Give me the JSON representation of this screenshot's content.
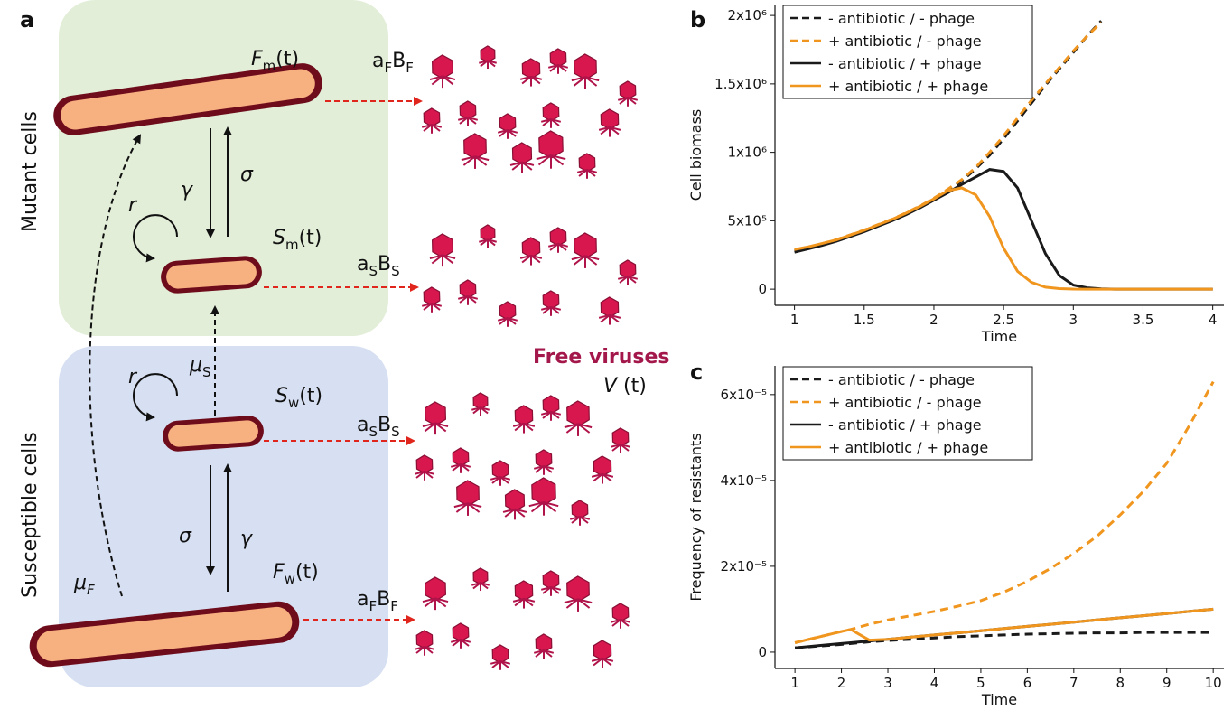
{
  "panel_labels": [
    "a",
    "b",
    "c"
  ],
  "diagram": {
    "compartments": [
      "Mutant cells",
      "Susceptible cells"
    ],
    "labels": [
      [
        {
          "text": "F",
          "italic": true
        },
        {
          "text": "m",
          "sub": true
        },
        {
          "text": "(t)"
        }
      ],
      [
        {
          "text": "a"
        },
        {
          "text": "F",
          "sub": true
        },
        {
          "text": "B"
        },
        {
          "text": "F",
          "sub": true
        }
      ],
      [
        {
          "text": "γ",
          "italic": true
        }
      ],
      [
        {
          "text": "σ",
          "italic": true
        }
      ],
      [
        {
          "text": "r",
          "italic": true
        }
      ],
      [
        {
          "text": "S",
          "italic": true
        },
        {
          "text": "m",
          "sub": true
        },
        {
          "text": "(t)"
        }
      ],
      [
        {
          "text": "a"
        },
        {
          "text": "S",
          "sub": true
        },
        {
          "text": "B"
        },
        {
          "text": "S",
          "sub": true
        }
      ],
      [
        {
          "text": "μ",
          "italic": true
        },
        {
          "text": "S",
          "sub": true
        }
      ],
      [
        {
          "text": "S",
          "italic": true
        },
        {
          "text": "w",
          "sub": true
        },
        {
          "text": "(t)"
        }
      ],
      [
        {
          "text": "a"
        },
        {
          "text": "S",
          "sub": true
        },
        {
          "text": "B"
        },
        {
          "text": "S",
          "sub": true
        }
      ],
      [
        {
          "text": "r",
          "italic": true
        }
      ],
      [
        {
          "text": "σ",
          "italic": true
        }
      ],
      [
        {
          "text": "γ",
          "italic": true
        }
      ],
      [
        {
          "text": "F",
          "italic": true
        },
        {
          "text": "w",
          "sub": true
        },
        {
          "text": "(t)"
        }
      ],
      [
        {
          "text": "a"
        },
        {
          "text": "F",
          "sub": true
        },
        {
          "text": "B"
        },
        {
          "text": "F",
          "sub": true
        }
      ],
      [
        {
          "text": "μ",
          "italic": true
        },
        {
          "text": "F",
          "sub": true,
          "italic": true
        }
      ],
      [
        {
          "text": "Free viruses",
          "bold": true,
          "color": "#a3174a"
        }
      ],
      [
        {
          "text": "V",
          "italic": true
        },
        {
          "text": " (t)"
        }
      ]
    ]
  },
  "chart_data": [
    {
      "type": "line",
      "y_label": "Cell biomass",
      "x_label": "Time",
      "x": [
        1.0,
        1.1,
        1.2,
        1.3,
        1.4,
        1.5,
        1.6,
        1.7,
        1.8,
        1.9,
        2.0,
        2.1,
        2.2,
        2.3,
        2.4,
        2.5,
        2.6,
        2.7,
        2.8,
        2.9,
        3.0,
        3.1,
        3.2,
        3.3,
        3.4,
        3.5,
        3.6,
        3.7,
        3.8,
        3.9,
        4.0
      ],
      "xlim": [
        0.86,
        4.08
      ],
      "ylim": [
        -118000,
        2080000
      ],
      "xticks": [
        1,
        1.5,
        2,
        2.5,
        3,
        3.5,
        4
      ],
      "yticks": [
        0,
        {
          "value": 500000,
          "label": "5x10⁵"
        },
        {
          "value": 1000000,
          "label": "1x10⁶"
        },
        {
          "value": 1500000,
          "label": "1.5x10⁶"
        },
        {
          "value": 2000000,
          "label": "2x10⁶"
        }
      ],
      "legend": "upper left",
      "series": [
        {
          "name": "- antibiotic /  - phage",
          "color": "#1a1a1a",
          "dash": true,
          "values": [
            280000,
            305000,
            330000,
            360000,
            395000,
            430000,
            470000,
            510000,
            555000,
            605000,
            660000,
            720000,
            790000,
            880000,
            980000,
            1100000,
            1230000,
            1360000,
            1490000,
            1610000,
            1730000,
            1850000,
            1960000,
            null,
            null,
            null,
            null,
            null,
            null,
            null,
            null
          ]
        },
        {
          "name": "+ antibiotic /  - phage",
          "color": "#f0961e",
          "dash": true,
          "values": [
            285000,
            308000,
            333000,
            362000,
            397000,
            432000,
            472000,
            512000,
            558000,
            608000,
            665000,
            730000,
            800000,
            890000,
            1000000,
            1120000,
            1250000,
            1380000,
            1500000,
            1620000,
            1740000,
            1850000,
            1950000,
            null,
            null,
            null,
            null,
            null,
            null,
            null,
            null
          ]
        },
        {
          "name": "- antibiotic / + phage",
          "color": "#1a1a1a",
          "dash": false,
          "values": [
            270000,
            295000,
            320000,
            350000,
            385000,
            420000,
            460000,
            500000,
            545000,
            595000,
            650000,
            705000,
            765000,
            820000,
            875000,
            860000,
            740000,
            500000,
            260000,
            100000,
            30000,
            10000,
            3000,
            0,
            0,
            0,
            0,
            0,
            0,
            0,
            0
          ]
        },
        {
          "name": "+ antibiotic / + phage",
          "color": "#f0961e",
          "dash": false,
          "values": [
            290000,
            310000,
            335000,
            360000,
            395000,
            430000,
            470000,
            510000,
            555000,
            605000,
            660000,
            720000,
            740000,
            690000,
            530000,
            300000,
            130000,
            50000,
            15000,
            4000,
            1000,
            0,
            0,
            0,
            0,
            0,
            0,
            0,
            0,
            0,
            0
          ]
        }
      ]
    },
    {
      "type": "line",
      "y_label": "Frequency of resistants",
      "x_label": "Time",
      "x": [
        1,
        1.5,
        2,
        2.2,
        2.6,
        3,
        3.5,
        4,
        4.5,
        5,
        5.5,
        6,
        6.5,
        7,
        7.5,
        8,
        8.5,
        9,
        9.5,
        10
      ],
      "xlim": [
        0.57,
        10.23
      ],
      "ylim": [
        -3.8e-06,
        6.67e-05
      ],
      "xticks": [
        1,
        2,
        3,
        4,
        5,
        6,
        7,
        8,
        9,
        10
      ],
      "yticks": [
        0,
        {
          "value": 2e-05,
          "label": "2x10⁻⁵"
        },
        {
          "value": 4e-05,
          "label": "4x10⁻⁵"
        },
        {
          "value": 6e-05,
          "label": "6x10⁻⁵"
        }
      ],
      "legend": "upper left",
      "series": [
        {
          "name": "- antibiotic /  - phage",
          "color": "#1a1a1a",
          "dash": true,
          "values": [
            1e-06,
            1.4e-06,
            1.8e-06,
            2e-06,
            2.4e-06,
            2.7e-06,
            3e-06,
            3.3e-06,
            3.6e-06,
            3.8e-06,
            4e-06,
            4.2e-06,
            4.3e-06,
            4.4e-06,
            4.5e-06,
            4.5e-06,
            4.6e-06,
            4.6e-06,
            4.6e-06,
            4.6e-06
          ]
        },
        {
          "name": "+ antibiotic /  - phage",
          "color": "#f0961e",
          "dash": true,
          "values": [
            2.2e-06,
            3.5e-06,
            4.8e-06,
            5.3e-06,
            6.5e-06,
            7.5e-06,
            8.5e-06,
            9.5e-06,
            1.07e-05,
            1.2e-05,
            1.4e-05,
            1.65e-05,
            1.95e-05,
            2.3e-05,
            2.7e-05,
            3.2e-05,
            3.75e-05,
            4.4e-05,
            5.3e-05,
            6.3e-05
          ]
        },
        {
          "name": "- antibiotic / + phage",
          "color": "#1a1a1a",
          "dash": false,
          "values": [
            1e-06,
            1.5e-06,
            2e-06,
            2.2e-06,
            2.6e-06,
            3e-06,
            3.5e-06,
            4e-06,
            4.5e-06,
            5e-06,
            5.5e-06,
            6e-06,
            6.5e-06,
            7e-06,
            7.5e-06,
            8e-06,
            8.5e-06,
            9e-06,
            9.5e-06,
            1e-05
          ]
        },
        {
          "name": "+ antibiotic / + phage",
          "color": "#f0961e",
          "dash": false,
          "values": [
            2.2e-06,
            3.5e-06,
            4.8e-06,
            5.3e-06,
            2.8e-06,
            3e-06,
            3.5e-06,
            4e-06,
            4.5e-06,
            5e-06,
            5.5e-06,
            6e-06,
            6.5e-06,
            7e-06,
            7.5e-06,
            8e-06,
            8.5e-06,
            9e-06,
            9.5e-06,
            1e-05
          ]
        }
      ]
    }
  ]
}
